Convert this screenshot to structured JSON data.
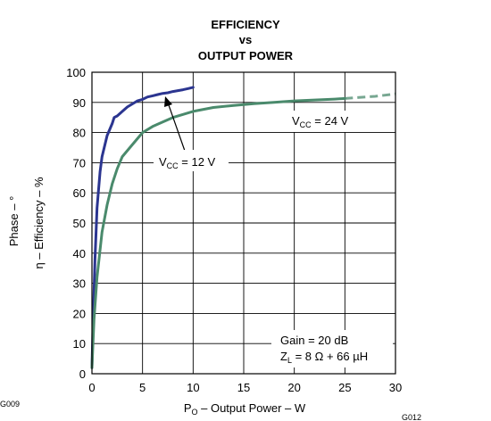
{
  "chart_data": {
    "type": "line",
    "title_lines": [
      "EFFICIENCY",
      "vs",
      "OUTPUT POWER"
    ],
    "xlabel": {
      "main": "P",
      "sub": "O",
      "rest": " – Output Power – W"
    },
    "ylabel_outer": "Phase – °",
    "ylabel_inner": "η – Efficiency – %",
    "xlim": [
      0,
      30
    ],
    "ylim": [
      0,
      100
    ],
    "xticks": [
      0,
      5,
      10,
      15,
      20,
      25,
      30
    ],
    "yticks": [
      0,
      10,
      20,
      30,
      40,
      50,
      60,
      70,
      80,
      90,
      100
    ],
    "grid": true,
    "series": [
      {
        "name": "VCC = 12 V",
        "label": {
          "main": "V",
          "sub": "CC",
          "rest": " = 12 V"
        },
        "color": "#2b3590",
        "x": [
          0,
          0.1,
          0.3,
          0.5,
          0.8,
          1.0,
          1.5,
          2.0,
          2.2,
          2.5,
          3,
          3.5,
          4,
          4.5,
          5,
          5.5,
          6,
          6.5,
          7,
          7.5,
          8,
          8.5,
          9,
          9.5,
          10
        ],
        "y": [
          2,
          15,
          38,
          55,
          67,
          72,
          79,
          83,
          85,
          85.5,
          87,
          88.5,
          89.5,
          90.5,
          91,
          91.8,
          92.2,
          92.6,
          93,
          93.2,
          93.6,
          93.9,
          94.2,
          94.6,
          95
        ]
      },
      {
        "name": "VCC = 24 V",
        "label": {
          "main": "V",
          "sub": "CC",
          "rest": " = 24 V"
        },
        "color": "#4a8a6c",
        "x": [
          0,
          0.2,
          0.5,
          1,
          1.5,
          2,
          2.5,
          3,
          4,
          5,
          6,
          7,
          8,
          9,
          10,
          12,
          14,
          16,
          18,
          20,
          22,
          24,
          25
        ],
        "y": [
          2,
          18,
          32,
          47,
          56,
          63,
          68,
          72,
          76,
          80,
          82,
          83.5,
          85,
          86,
          87,
          88.3,
          89,
          89.6,
          90,
          90.5,
          90.8,
          91.1,
          91.3
        ],
        "extension_dashed": {
          "x": [
            25,
            28,
            30
          ],
          "y": [
            91.3,
            92,
            92.8
          ]
        }
      }
    ],
    "annotations": {
      "gain": "Gain = 20 dB",
      "zl": {
        "main": "Z",
        "sub": "L",
        "rest": " = 8 Ω + 66 µH"
      }
    },
    "figure_codes": {
      "left": "G009",
      "right": "G012"
    }
  }
}
